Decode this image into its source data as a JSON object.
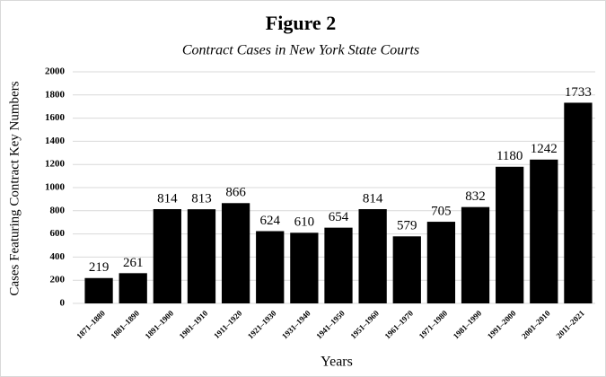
{
  "chart_data": {
    "type": "bar",
    "title": "Figure 2",
    "subtitle": "Contract Cases in New York State Courts",
    "x_label": "Years",
    "y_label": "Cases Featuring Contract Key Numbers",
    "categories": [
      "1871–1880",
      "1881–1890",
      "1891–1900",
      "1901–1910",
      "1911–1920",
      "1921–1930",
      "1931–1940",
      "1941–1950",
      "1951–1960",
      "1961–1970",
      "1971–1980",
      "1981–1990",
      "1991–2000",
      "2001–2010",
      "2011–2021"
    ],
    "values": [
      219,
      261,
      814,
      813,
      866,
      624,
      610,
      654,
      814,
      579,
      705,
      832,
      1180,
      1242,
      1733
    ],
    "color": "#000000",
    "ylim": [
      0,
      2000
    ],
    "yticks": [
      0,
      200,
      400,
      600,
      800,
      1000,
      1200,
      1400,
      1600,
      1800,
      2000
    ],
    "grid": true
  }
}
